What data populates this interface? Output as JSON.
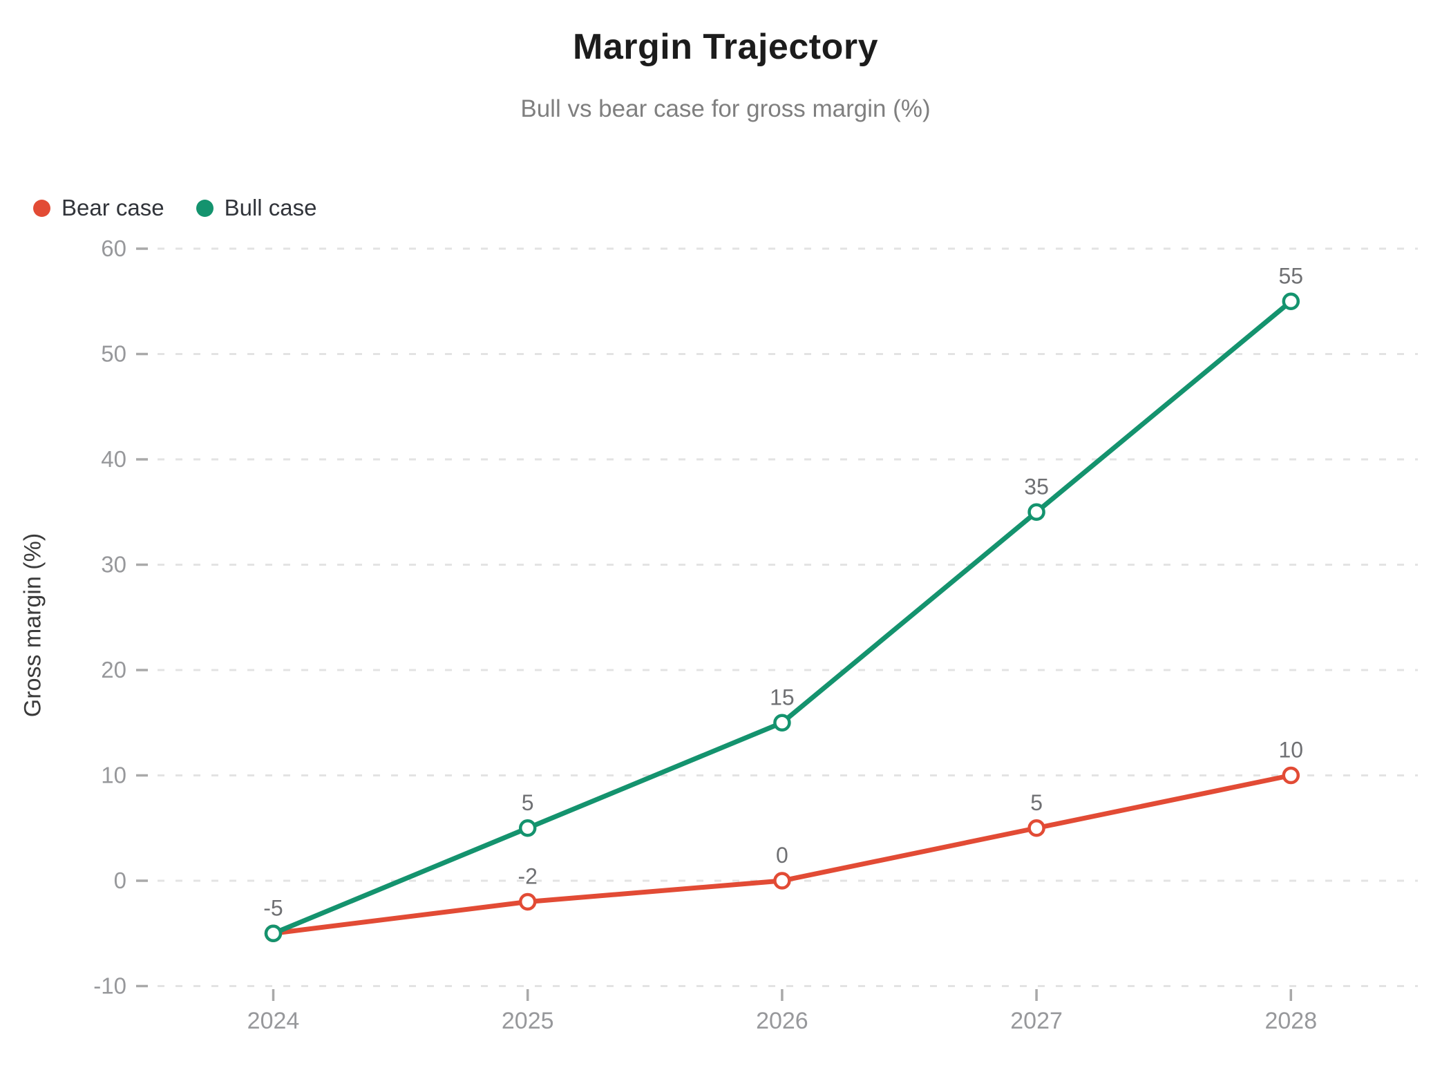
{
  "chart": {
    "title": "Margin Trajectory",
    "subtitle": "Bull vs bear case for gross margin (%)",
    "ylabel": "Gross margin (%)"
  },
  "chart_data": {
    "type": "line",
    "x": [
      "2024",
      "2025",
      "2026",
      "2027",
      "2028"
    ],
    "series": [
      {
        "name": "Bear case",
        "values": [
          -5,
          -2,
          0,
          5,
          10
        ],
        "color": "#e24b35"
      },
      {
        "name": "Bull case",
        "values": [
          -5,
          5,
          15,
          35,
          55
        ],
        "color": "#14936e"
      }
    ],
    "title": "Margin Trajectory",
    "subtitle": "Bull vs bear case for gross margin (%)",
    "xlabel": "",
    "ylabel": "Gross margin (%)",
    "ylim": [
      -10,
      60
    ],
    "yticks": [
      -10,
      0,
      10,
      20,
      30,
      40,
      50,
      60
    ],
    "grid": "horizontal-dashed",
    "legend_position": "top-left",
    "marker": "open-circle",
    "data_labels": true
  },
  "style_colors": {
    "grid": "#e3e3e3",
    "tick": "#a9a9a9",
    "axis_label": "#97989b",
    "data_label": "#6f7073",
    "marker_fill": "#ffffff"
  }
}
